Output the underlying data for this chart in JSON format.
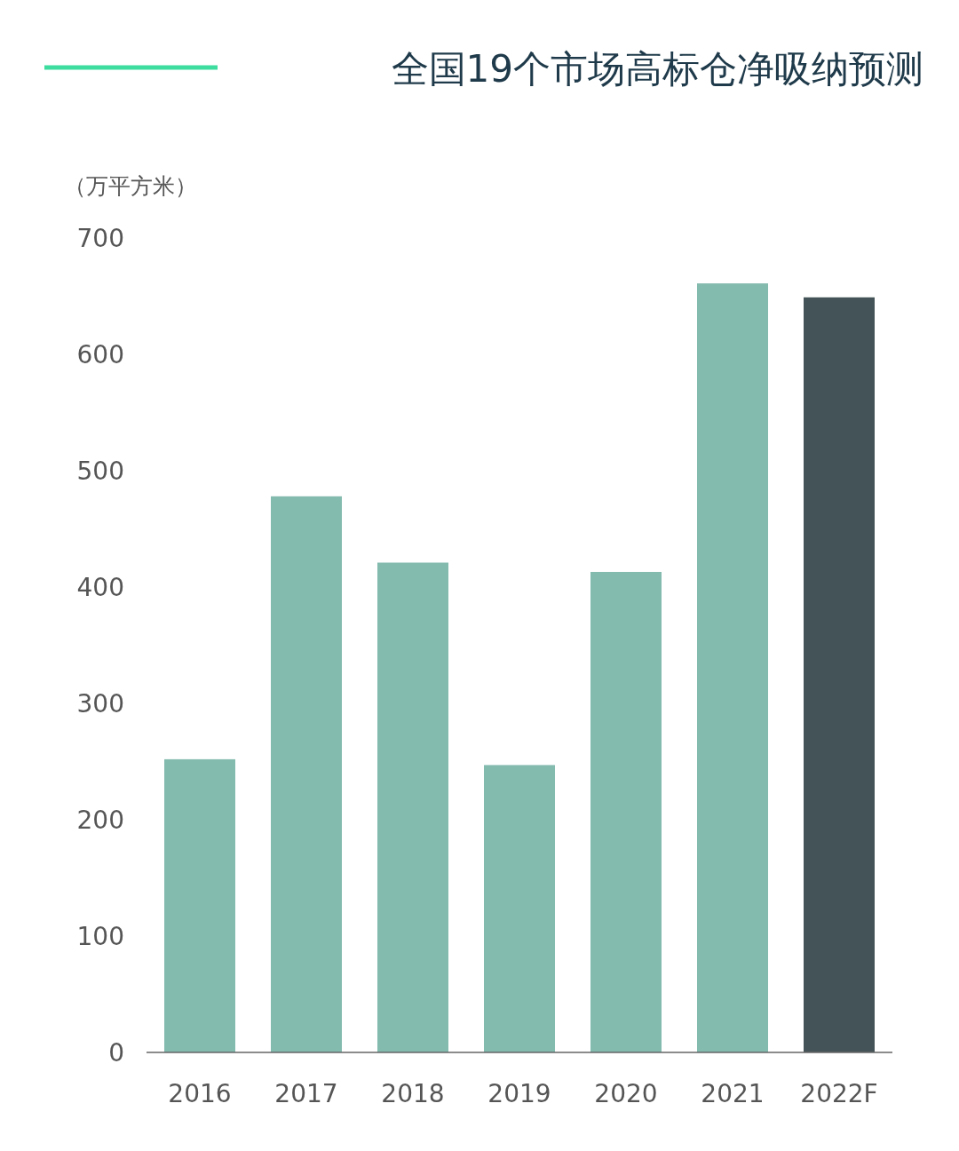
{
  "chart_data": {
    "type": "bar",
    "title": "全国19个市场高标仓净吸纳预测",
    "ylabel": "（万平方米）",
    "categories": [
      "2016",
      "2017",
      "2018",
      "2019",
      "2020",
      "2021",
      "2022F"
    ],
    "values": [
      252,
      478,
      421,
      247,
      413,
      661,
      649
    ],
    "colors": [
      "#84bbaf",
      "#84bbaf",
      "#84bbaf",
      "#84bbaf",
      "#84bbaf",
      "#84bbaf",
      "#445357"
    ],
    "ylim": [
      0,
      700
    ],
    "yticks": [
      0,
      100,
      200,
      300,
      400,
      500,
      600,
      700
    ]
  }
}
